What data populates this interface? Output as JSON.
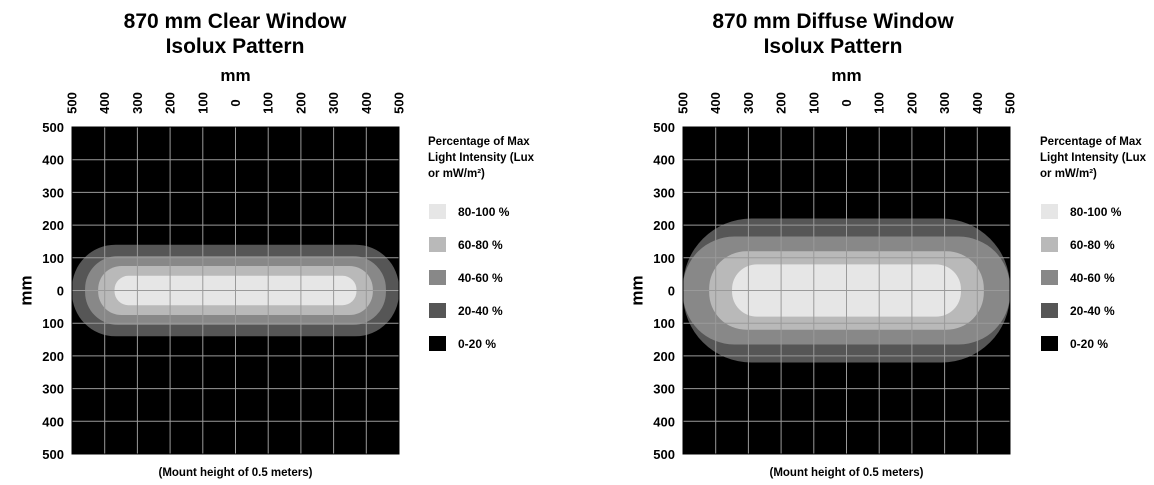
{
  "chart_data": [
    {
      "type": "heatmap",
      "title": "870 mm Clear Window",
      "subtitle": "Isolux Pattern",
      "xlabel": "mm",
      "ylabel": "mm",
      "xticks": [
        "500",
        "400",
        "300",
        "200",
        "100",
        "0",
        "100",
        "200",
        "300",
        "400",
        "500"
      ],
      "yticks": [
        "500",
        "400",
        "300",
        "200",
        "100",
        "0",
        "100",
        "200",
        "300",
        "400",
        "500"
      ],
      "xlim": [
        -500,
        500
      ],
      "ylim": [
        -500,
        500
      ],
      "grid": true,
      "background": "#000000",
      "legend_title": "Percentage of Max Light Intensity (Lux or mW/m²)",
      "legend_position": "right",
      "footnote": "(Mount height of 0.5 meters)",
      "bands": [
        {
          "label": "80-100 %",
          "color": "#e6e6e6",
          "half_width": 370,
          "half_height": 45
        },
        {
          "label": "60-80 %",
          "color": "#b9b9b9",
          "half_width": 420,
          "half_height": 75
        },
        {
          "label": "40-60 %",
          "color": "#888888",
          "half_width": 460,
          "half_height": 105
        },
        {
          "label": "20-40 %",
          "color": "#565656",
          "half_width": 500,
          "half_height": 140
        },
        {
          "label": "0-20 %",
          "color": "#000000"
        }
      ]
    },
    {
      "type": "heatmap",
      "title": "870 mm Diffuse Window",
      "subtitle": "Isolux Pattern",
      "xlabel": "mm",
      "ylabel": "mm",
      "xticks": [
        "500",
        "400",
        "300",
        "200",
        "100",
        "0",
        "100",
        "200",
        "300",
        "400",
        "500"
      ],
      "yticks": [
        "500",
        "400",
        "300",
        "200",
        "100",
        "0",
        "100",
        "200",
        "300",
        "400",
        "500"
      ],
      "xlim": [
        -500,
        500
      ],
      "ylim": [
        -500,
        500
      ],
      "grid": true,
      "background": "#000000",
      "legend_title": "Percentage of Max Light Intensity (Lux or mW/m²)",
      "legend_position": "right",
      "footnote": "(Mount height of 0.5 meters)",
      "bands": [
        {
          "label": "80-100 %",
          "color": "#e6e6e6",
          "half_width": 350,
          "half_height": 80
        },
        {
          "label": "60-80 %",
          "color": "#b9b9b9",
          "half_width": 420,
          "half_height": 120
        },
        {
          "label": "40-60 %",
          "color": "#888888",
          "half_width": 500,
          "half_height": 165
        },
        {
          "label": "20-40 %",
          "color": "#565656",
          "half_width": 500,
          "half_height": 220
        },
        {
          "label": "0-20 %",
          "color": "#000000"
        }
      ]
    }
  ]
}
